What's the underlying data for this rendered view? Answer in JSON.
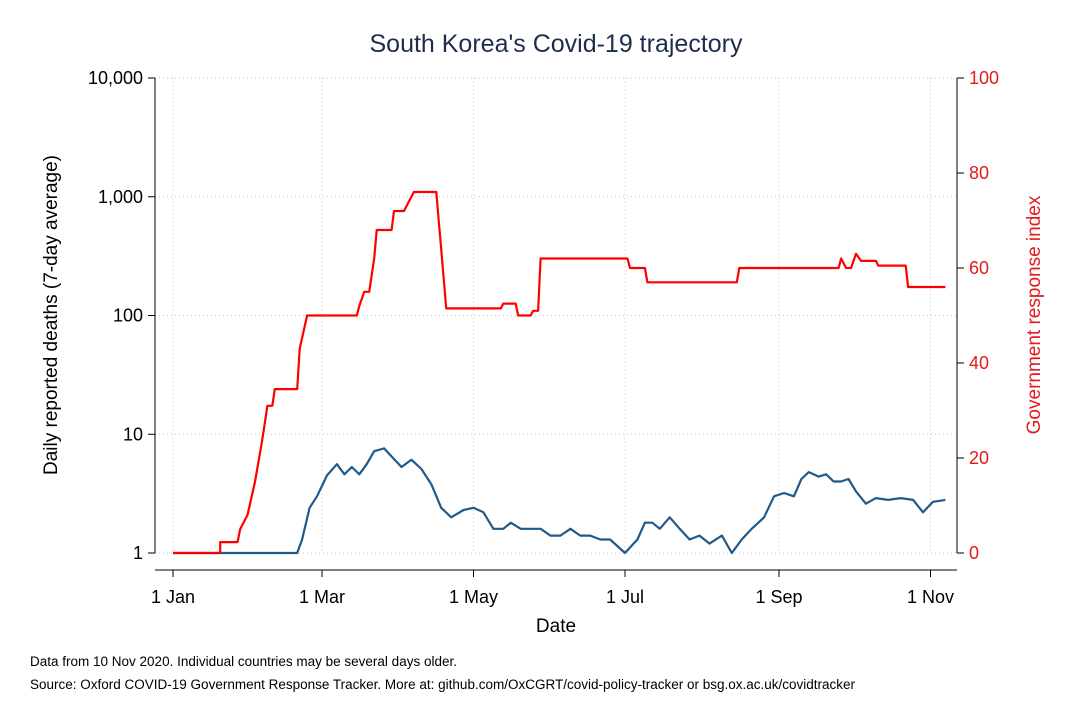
{
  "chart_data": {
    "type": "line",
    "title": "South Korea's Covid-19 trajectory",
    "xlabel": "Date",
    "ylabel_left": "Daily reported deaths (7-day average)",
    "ylabel_right": "Government response index",
    "left_axis": {
      "scale": "log",
      "range": [
        1,
        10000
      ],
      "ticks": [
        1,
        10,
        100,
        1000,
        10000
      ],
      "tick_labels": [
        "1",
        "10",
        "100",
        "1,000",
        "10,000"
      ]
    },
    "right_axis": {
      "scale": "linear",
      "range": [
        0,
        100
      ],
      "ticks": [
        0,
        20,
        40,
        60,
        80,
        100
      ],
      "tick_labels": [
        "0",
        "20",
        "40",
        "60",
        "80",
        "100"
      ]
    },
    "x_axis": {
      "range": [
        "2020-01-01",
        "2020-11-10"
      ],
      "ticks": [
        "2020-01-01",
        "2020-03-01",
        "2020-05-01",
        "2020-07-01",
        "2020-09-01",
        "2020-11-01"
      ],
      "tick_labels": [
        "1 Jan",
        "1 Mar",
        "1 May",
        "1 Jul",
        "1 Sep",
        "1 Nov"
      ]
    },
    "grid": true,
    "series": [
      {
        "axis": "left",
        "color": "#1f5a8a",
        "points": [
          [
            "2020-01-01",
            1
          ],
          [
            "2020-02-20",
            1
          ],
          [
            "2020-02-22",
            1.3
          ],
          [
            "2020-02-25",
            2.4
          ],
          [
            "2020-02-28",
            3.0
          ],
          [
            "2020-03-03",
            4.5
          ],
          [
            "2020-03-07",
            5.6
          ],
          [
            "2020-03-10",
            4.6
          ],
          [
            "2020-03-13",
            5.3
          ],
          [
            "2020-03-16",
            4.6
          ],
          [
            "2020-03-19",
            5.6
          ],
          [
            "2020-03-22",
            7.2
          ],
          [
            "2020-03-26",
            7.6
          ],
          [
            "2020-03-29",
            6.5
          ],
          [
            "2020-04-02",
            5.3
          ],
          [
            "2020-04-06",
            6.1
          ],
          [
            "2020-04-10",
            5.1
          ],
          [
            "2020-04-14",
            3.8
          ],
          [
            "2020-04-18",
            2.4
          ],
          [
            "2020-04-22",
            2.0
          ],
          [
            "2020-04-27",
            2.3
          ],
          [
            "2020-05-01",
            2.4
          ],
          [
            "2020-05-05",
            2.2
          ],
          [
            "2020-05-09",
            1.6
          ],
          [
            "2020-05-13",
            1.6
          ],
          [
            "2020-05-16",
            1.8
          ],
          [
            "2020-05-20",
            1.6
          ],
          [
            "2020-05-24",
            1.6
          ],
          [
            "2020-05-28",
            1.6
          ],
          [
            "2020-06-01",
            1.4
          ],
          [
            "2020-06-05",
            1.4
          ],
          [
            "2020-06-09",
            1.6
          ],
          [
            "2020-06-13",
            1.4
          ],
          [
            "2020-06-17",
            1.4
          ],
          [
            "2020-06-21",
            1.3
          ],
          [
            "2020-06-25",
            1.3
          ],
          [
            "2020-07-01",
            1.0
          ],
          [
            "2020-07-06",
            1.3
          ],
          [
            "2020-07-09",
            1.8
          ],
          [
            "2020-07-12",
            1.8
          ],
          [
            "2020-07-15",
            1.6
          ],
          [
            "2020-07-19",
            2.0
          ],
          [
            "2020-07-23",
            1.6
          ],
          [
            "2020-07-27",
            1.3
          ],
          [
            "2020-07-31",
            1.4
          ],
          [
            "2020-08-04",
            1.2
          ],
          [
            "2020-08-09",
            1.4
          ],
          [
            "2020-08-13",
            1.0
          ],
          [
            "2020-08-17",
            1.3
          ],
          [
            "2020-08-21",
            1.6
          ],
          [
            "2020-08-26",
            2.0
          ],
          [
            "2020-08-30",
            3.0
          ],
          [
            "2020-09-03",
            3.2
          ],
          [
            "2020-09-07",
            3.0
          ],
          [
            "2020-09-10",
            4.2
          ],
          [
            "2020-09-13",
            4.8
          ],
          [
            "2020-09-17",
            4.4
          ],
          [
            "2020-09-20",
            4.6
          ],
          [
            "2020-09-23",
            4.0
          ],
          [
            "2020-09-26",
            4.0
          ],
          [
            "2020-09-29",
            4.2
          ],
          [
            "2020-10-02",
            3.3
          ],
          [
            "2020-10-06",
            2.6
          ],
          [
            "2020-10-10",
            2.9
          ],
          [
            "2020-10-15",
            2.8
          ],
          [
            "2020-10-20",
            2.9
          ],
          [
            "2020-10-25",
            2.8
          ],
          [
            "2020-10-29",
            2.2
          ],
          [
            "2020-11-02",
            2.7
          ],
          [
            "2020-11-07",
            2.8
          ]
        ]
      },
      {
        "axis": "right",
        "color": "#ff0000",
        "points": [
          [
            "2020-01-01",
            0
          ],
          [
            "2020-01-20",
            0
          ],
          [
            "2020-01-20",
            2.3
          ],
          [
            "2020-01-27",
            2.3
          ],
          [
            "2020-01-28",
            5
          ],
          [
            "2020-01-31",
            8
          ],
          [
            "2020-02-03",
            15
          ],
          [
            "2020-02-06",
            24
          ],
          [
            "2020-02-08",
            31
          ],
          [
            "2020-02-10",
            31
          ],
          [
            "2020-02-11",
            34.5
          ],
          [
            "2020-02-20",
            34.5
          ],
          [
            "2020-02-21",
            43
          ],
          [
            "2020-02-24",
            50
          ],
          [
            "2020-03-15",
            50
          ],
          [
            "2020-03-16",
            52
          ],
          [
            "2020-03-18",
            55
          ],
          [
            "2020-03-20",
            55
          ],
          [
            "2020-03-22",
            62
          ],
          [
            "2020-03-23",
            68
          ],
          [
            "2020-03-29",
            68
          ],
          [
            "2020-03-30",
            72
          ],
          [
            "2020-04-03",
            72
          ],
          [
            "2020-04-05",
            74
          ],
          [
            "2020-04-07",
            76
          ],
          [
            "2020-04-16",
            76
          ],
          [
            "2020-04-17",
            70
          ],
          [
            "2020-04-18",
            64
          ],
          [
            "2020-04-20",
            51.5
          ],
          [
            "2020-05-12",
            51.5
          ],
          [
            "2020-05-13",
            52.5
          ],
          [
            "2020-05-18",
            52.5
          ],
          [
            "2020-05-19",
            50
          ],
          [
            "2020-05-24",
            50
          ],
          [
            "2020-05-25",
            51
          ],
          [
            "2020-05-27",
            51
          ],
          [
            "2020-05-28",
            62
          ],
          [
            "2020-07-02",
            62
          ],
          [
            "2020-07-03",
            60
          ],
          [
            "2020-07-09",
            60
          ],
          [
            "2020-07-10",
            57
          ],
          [
            "2020-08-15",
            57
          ],
          [
            "2020-08-16",
            60
          ],
          [
            "2020-09-25",
            60
          ],
          [
            "2020-09-26",
            62
          ],
          [
            "2020-09-28",
            60
          ],
          [
            "2020-09-30",
            60
          ],
          [
            "2020-10-02",
            63
          ],
          [
            "2020-10-04",
            61.5
          ],
          [
            "2020-10-10",
            61.5
          ],
          [
            "2020-10-11",
            60.5
          ],
          [
            "2020-10-22",
            60.5
          ],
          [
            "2020-10-23",
            56
          ],
          [
            "2020-11-07",
            56
          ]
        ]
      }
    ],
    "notes": [
      "Data from 10 Nov 2020. Individual countries may be several days older.",
      "Source: Oxford COVID-19 Government Response Tracker. More at: github.com/OxCGRT/covid-policy-tracker or bsg.ox.ac.uk/covidtracker"
    ]
  }
}
